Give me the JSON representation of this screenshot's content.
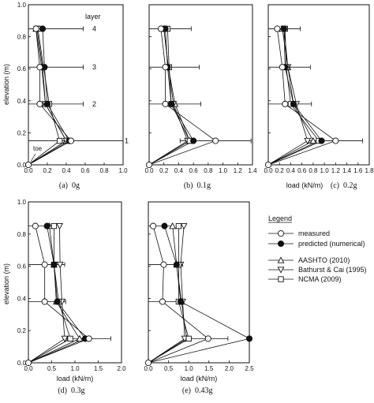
{
  "figure": {
    "ylabel": "elevation (m)",
    "xlabel": "load (kN/m)",
    "legend": {
      "title": "Legend",
      "entries": [
        {
          "key": "measured",
          "label": "measured",
          "marker": "circle-open"
        },
        {
          "key": "predicted",
          "label": "predicted (numerical)",
          "marker": "circle-filled"
        },
        {
          "key": "aashto",
          "label": "AASHTO (2010)",
          "marker": "triangle-up"
        },
        {
          "key": "bathurst",
          "label": "Bathurst & Cai (1995)",
          "marker": "triangle-down"
        },
        {
          "key": "ncma",
          "label": "NCMA (2009)",
          "marker": "square"
        }
      ]
    },
    "layer_label": "layer",
    "toe_label": "toe"
  },
  "chart_data": [
    {
      "type": "line",
      "panel": "a",
      "caption_letter": "(a)",
      "caption_value": "0g",
      "xlim": [
        0,
        1.0
      ],
      "xticks": [
        "0.0",
        "0.2",
        "0.4",
        "0.6",
        "0.8",
        "1.0"
      ],
      "ylim": [
        0,
        1.0
      ],
      "yticks": [
        "0.0",
        "0.2",
        "0.4",
        "0.6",
        "0.8",
        "1.0"
      ],
      "show_xlabel": false,
      "elevations": [
        0,
        0.15,
        0.38,
        0.61,
        0.85
      ],
      "layer_numbers": [
        "1",
        "2",
        "3",
        "4"
      ],
      "series": [
        {
          "key": "measured",
          "x": [
            0,
            0.45,
            0.12,
            0.12,
            0.08
          ],
          "err_high": [
            null,
            1.0,
            0.58,
            0.58,
            0.58
          ]
        },
        {
          "key": "predicted",
          "x": [
            0,
            0.43,
            0.2,
            0.17,
            0.15
          ]
        },
        {
          "key": "aashto",
          "x": [
            0,
            0.4,
            0.18,
            0.14,
            0.08
          ]
        },
        {
          "key": "bathurst",
          "x": [
            0,
            0.4,
            0.18,
            0.15,
            0.09
          ]
        },
        {
          "key": "ncma",
          "x": [
            0,
            0.33,
            0.22,
            0.16,
            0.1
          ]
        }
      ]
    },
    {
      "type": "line",
      "panel": "b",
      "caption_letter": "(b)",
      "caption_value": "0.1g",
      "xlim": [
        0,
        1.4
      ],
      "xticks": [
        "0.0",
        "0.2",
        "0.4",
        "0.6",
        "0.8",
        "1.0",
        "1.2",
        "1.4"
      ],
      "ylim": [
        0,
        1.0
      ],
      "yticks": [],
      "show_xlabel": false,
      "elevations": [
        0,
        0.15,
        0.38,
        0.61,
        0.85
      ],
      "series": [
        {
          "key": "measured",
          "x": [
            0,
            0.9,
            0.22,
            0.22,
            0.16
          ],
          "err_high": [
            null,
            1.38,
            0.7,
            0.68,
            0.57
          ]
        },
        {
          "key": "predicted",
          "x": [
            0,
            0.6,
            0.3,
            0.25,
            0.22
          ]
        },
        {
          "key": "aashto",
          "x": [
            0,
            0.55,
            0.35,
            0.26,
            0.2
          ]
        },
        {
          "key": "bathurst",
          "x": [
            0,
            0.52,
            0.33,
            0.26,
            0.2
          ]
        },
        {
          "key": "ncma",
          "x": [
            0,
            0.55,
            0.3,
            0.27,
            0.25
          ]
        }
      ]
    },
    {
      "type": "line",
      "panel": "c",
      "caption_letter": "(c)",
      "caption_value": "0.2g",
      "xlim": [
        0,
        1.8
      ],
      "xticks": [
        "0.0",
        "0.2",
        "0.4",
        "0.6",
        "0.8",
        "1.0",
        "1.2",
        "1.4",
        "1.6",
        "1.8"
      ],
      "ylim": [
        0,
        1.0
      ],
      "yticks": [],
      "show_xlabel": true,
      "elevations": [
        0,
        0.15,
        0.38,
        0.61,
        0.85
      ],
      "series": [
        {
          "key": "measured",
          "x": [
            0,
            1.2,
            0.3,
            0.25,
            0.16
          ],
          "err_high": [
            null,
            1.68,
            0.77,
            0.75,
            0.57
          ]
        },
        {
          "key": "predicted",
          "x": [
            0,
            0.95,
            0.45,
            0.3,
            0.28
          ]
        },
        {
          "key": "aashto",
          "x": [
            0,
            0.8,
            0.45,
            0.35,
            0.25
          ]
        },
        {
          "key": "bathurst",
          "x": [
            0,
            0.7,
            0.5,
            0.35,
            0.28
          ]
        },
        {
          "key": "ncma",
          "x": [
            0,
            0.9,
            0.4,
            0.32,
            0.3
          ]
        }
      ]
    },
    {
      "type": "line",
      "panel": "d",
      "caption_letter": "(d)",
      "caption_value": "0.3g",
      "xlim": [
        0,
        2.0
      ],
      "xticks": [
        "0.0",
        "0.5",
        "1.0",
        "1.5",
        "2.0"
      ],
      "ylim": [
        0,
        1.0
      ],
      "yticks": [
        "0.0",
        "0.2",
        "0.4",
        "0.6",
        "0.8",
        "1.0"
      ],
      "show_xlabel": true,
      "elevations": [
        0,
        0.15,
        0.38,
        0.61,
        0.85
      ],
      "series": [
        {
          "key": "measured",
          "x": [
            0,
            1.3,
            0.35,
            0.35,
            0.15
          ],
          "err_high": [
            null,
            1.77,
            0.8,
            0.78,
            0.6
          ]
        },
        {
          "key": "predicted",
          "x": [
            0,
            1.22,
            0.62,
            0.55,
            0.4
          ]
        },
        {
          "key": "aashto",
          "x": [
            0,
            1.1,
            0.6,
            0.55,
            0.45
          ]
        },
        {
          "key": "bathurst",
          "x": [
            0,
            0.78,
            0.72,
            0.68,
            0.67
          ]
        },
        {
          "key": "ncma",
          "x": [
            0,
            0.9,
            0.65,
            0.55,
            0.55
          ]
        }
      ]
    },
    {
      "type": "line",
      "panel": "e",
      "caption_letter": "(e)",
      "caption_value": "0.43g",
      "xlim": [
        0,
        2.5
      ],
      "xticks": [
        "0.0",
        "0.5",
        "1.0",
        "1.5",
        "2.0",
        "2.5"
      ],
      "ylim": [
        0,
        1.0
      ],
      "yticks": [],
      "show_xlabel": true,
      "elevations": [
        0,
        0.15,
        0.38,
        0.61,
        0.85
      ],
      "series": [
        {
          "key": "measured",
          "x": [
            0,
            1.48,
            0.35,
            0.38,
            0.12
          ],
          "err_high": [
            null,
            1.97,
            0.82,
            0.85,
            0.58
          ]
        },
        {
          "key": "predicted",
          "x": [
            0,
            2.5,
            0.8,
            0.7,
            0.4
          ]
        },
        {
          "key": "aashto",
          "x": [
            0,
            0.95,
            0.82,
            0.7,
            0.6
          ]
        },
        {
          "key": "bathurst",
          "x": [
            0,
            0.9,
            0.85,
            0.8,
            0.88
          ]
        },
        {
          "key": "ncma",
          "x": [
            0,
            1.0,
            0.75,
            0.75,
            0.75
          ]
        }
      ]
    }
  ]
}
